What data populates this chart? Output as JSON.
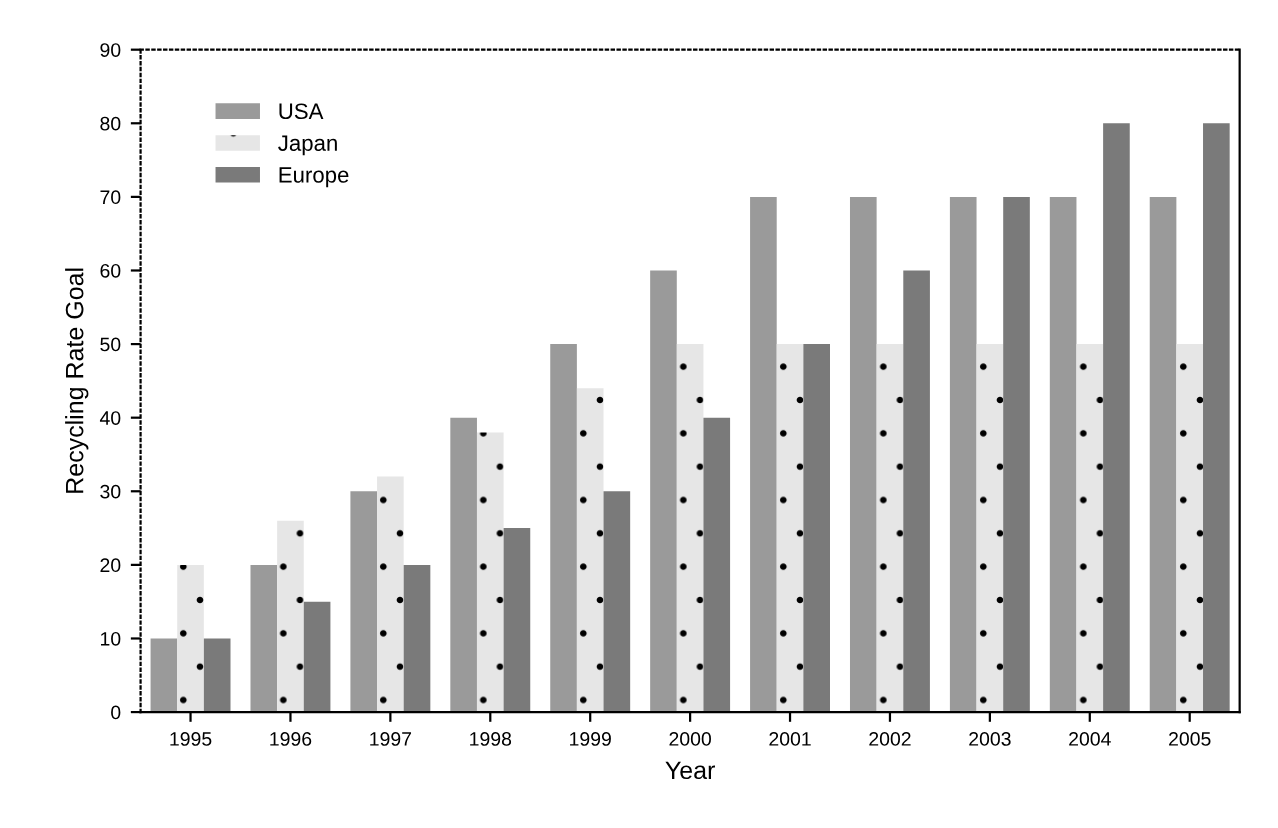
{
  "chart_data": {
    "type": "bar",
    "xlabel": "Year",
    "ylabel": "Recycling Rate Goal",
    "categories": [
      "1995",
      "1996",
      "1997",
      "1998",
      "1999",
      "2000",
      "2001",
      "2002",
      "2003",
      "2004",
      "2005"
    ],
    "series": [
      {
        "name": "USA",
        "color": "#9a9a9a",
        "values": [
          10,
          20,
          30,
          40,
          50,
          60,
          70,
          70,
          70,
          70,
          70
        ]
      },
      {
        "name": "Japan",
        "color": "#e6e6e6",
        "values": [
          20,
          26,
          32,
          38,
          44,
          50,
          50,
          50,
          50,
          50,
          50
        ]
      },
      {
        "name": "Europe",
        "color": "#7a7a7a",
        "values": [
          10,
          15,
          20,
          25,
          30,
          40,
          50,
          60,
          70,
          80,
          80
        ]
      }
    ],
    "ylim": [
      0,
      90
    ],
    "yticks": [
      0,
      10,
      20,
      30,
      40,
      50,
      60,
      70,
      80,
      90
    ],
    "grid": false,
    "legend": "top left"
  }
}
